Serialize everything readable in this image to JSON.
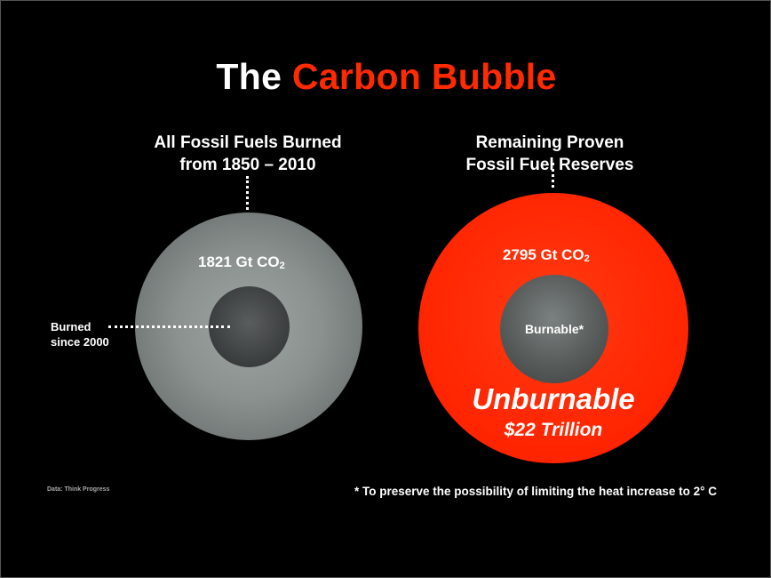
{
  "title": {
    "part1": "The",
    "part2": "Carbon Bubble"
  },
  "left": {
    "heading_line1": "All Fossil Fuels Burned",
    "heading_line2": "from 1850 – 2010",
    "amount": "1821 Gt CO",
    "amount_sub": "2",
    "inner_label_line1": "Burned",
    "inner_label_line2": "since 2000"
  },
  "right": {
    "heading_line1": "Remaining Proven",
    "heading_line2": "Fossil Fuel Reserves",
    "amount": "2795 Gt CO",
    "amount_sub": "2",
    "inner_label": "Burnable*",
    "outer_label": "Unburnable",
    "value_label": "$22 Trillion"
  },
  "source": "Data: Think Progress",
  "footnote": "* To preserve the possibility of limiting the heat increase to 2° C",
  "colors": {
    "accent": "#ff2a00",
    "background": "#000000",
    "gray_circle": "#8a918f"
  }
}
